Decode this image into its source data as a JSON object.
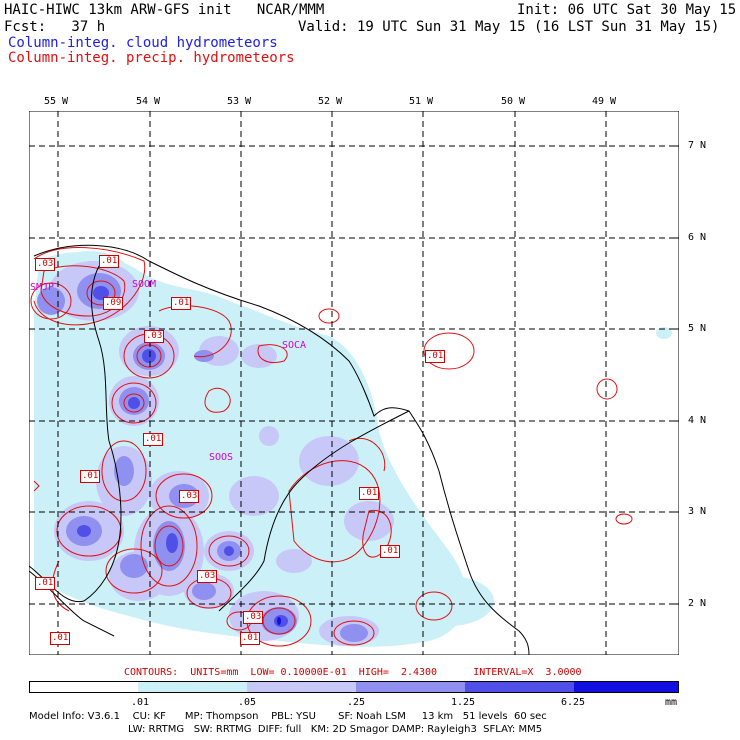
{
  "header": {
    "title_left": "HAIC-HIWC 13km ARW-GFS init   NCAR/MMM",
    "init": "Init: 06 UTC Sat 30 May 15",
    "fcst": "Fcst:   37 h",
    "valid": "Valid: 19 UTC Sun 31 May 15 (16 LST Sun 31 May 15)",
    "field1": "Column-integ. cloud hydrometeors",
    "field2": "Column-integ. precip. hydrometeors"
  },
  "lon_labels": [
    "55 W",
    "54 W",
    "53 W",
    "52 W",
    "51 W",
    "50 W",
    "49 W"
  ],
  "lat_labels": [
    "7 N",
    "6 N",
    "5 N",
    "4 N",
    "3 N",
    "2 N"
  ],
  "stations": [
    "SOCA",
    "SOOS",
    "SOOM",
    "SMJP"
  ],
  "contour_labels": [
    ".03",
    ".01",
    ".09",
    ".01",
    ".03",
    ".01",
    ".01",
    ".01",
    ".03",
    ".01",
    ".01",
    ".03",
    ".01",
    ".03",
    ".01",
    ".01"
  ],
  "contours_info": "CONTOURS:  UNITS=mm  LOW= 0.10000E-01  HIGH=  2.4300      INTERVAL=X  3.0000",
  "colorbar": {
    "ticks": [
      ".01",
      ".05",
      ".25",
      "1.25",
      "6.25",
      "mm"
    ],
    "colors": [
      "#ffffff",
      "#ccf0f8",
      "#c8c8f8",
      "#9090f0",
      "#5050e8",
      "#1010e0"
    ]
  },
  "footer": {
    "line1": "Model Info: V3.6.1    CU: KF      MP: Thompson    PBL: YSU       SF: Noah LSM     13 km   51 levels  60 sec",
    "line2": "LW: RRTMG   SW: RRTMG  DIFF: full   KM: 2D Smagor DAMP: Rayleigh3  SFLAY: MM5"
  }
}
